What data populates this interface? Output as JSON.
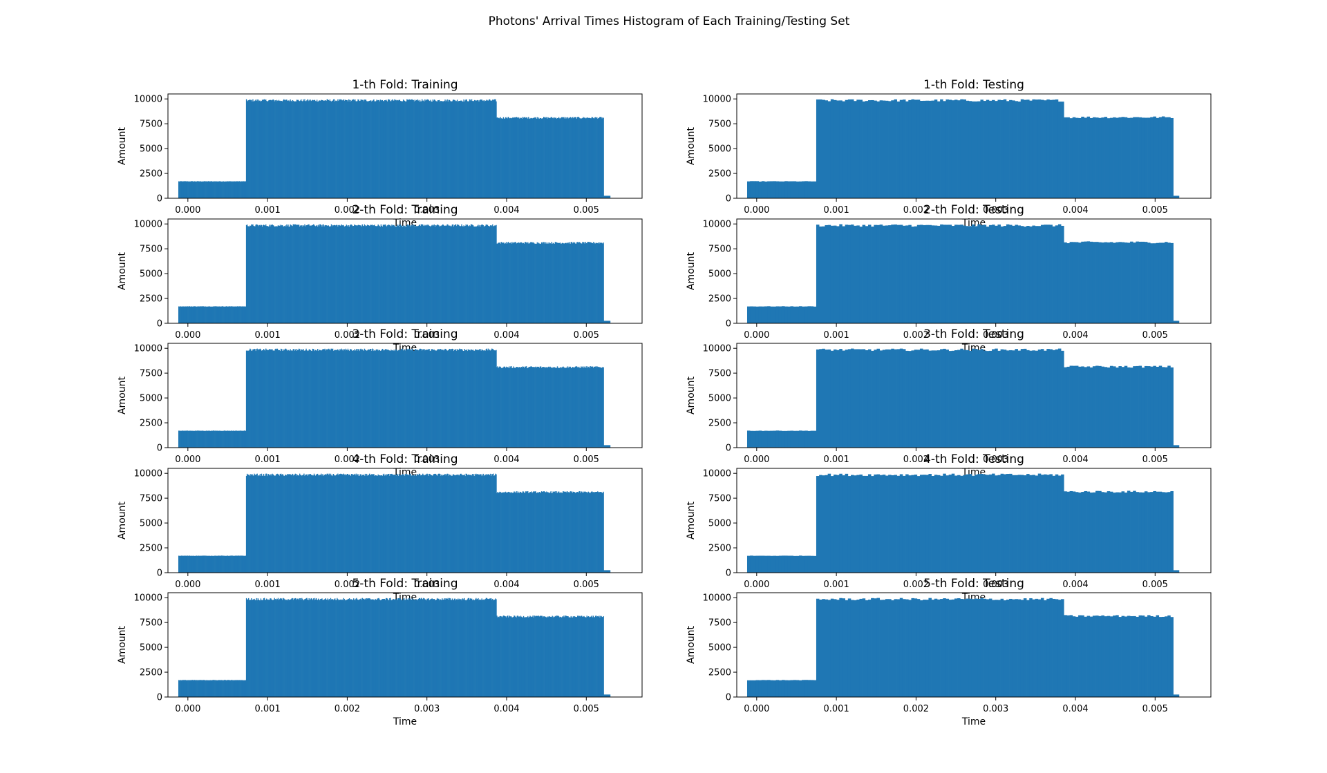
{
  "figure_title": "Photons' Arrival Times Histogram of Each Training/Testing Set",
  "colors": {
    "bars": "#1f77b4",
    "background": "#ffffff",
    "axes": "#000000"
  },
  "chart_data": [
    {
      "type": "bar",
      "title": "1-th Fold: Training",
      "xlabel": "Time",
      "ylabel": "Amount",
      "xlim": [
        -0.00025,
        0.0057
      ],
      "ylim": [
        0,
        10500
      ],
      "xticks": [
        "0.000",
        "0.001",
        "0.002",
        "0.003",
        "0.004",
        "0.005"
      ],
      "yticks": [
        "0",
        "2500",
        "5000",
        "7500",
        "10000"
      ],
      "bins": 600,
      "levels": [
        {
          "from": -0.00012,
          "to": 0.00073,
          "value": 1700
        },
        {
          "from": 0.00073,
          "to": 0.00387,
          "value": 9850
        },
        {
          "from": 0.00387,
          "to": 0.00522,
          "value": 8100
        },
        {
          "from": 0.00522,
          "to": 0.0053,
          "value": 250
        }
      ],
      "grid": false
    },
    {
      "type": "bar",
      "title": "1-th Fold: Testing",
      "xlabel": "Time",
      "ylabel": "Amount",
      "xlim": [
        -0.00025,
        0.0057
      ],
      "ylim": [
        0,
        10500
      ],
      "xticks": [
        "0.000",
        "0.001",
        "0.002",
        "0.003",
        "0.004",
        "0.005"
      ],
      "yticks": [
        "0",
        "2500",
        "5000",
        "7500",
        "10000"
      ],
      "bins": 150,
      "levels": [
        {
          "from": -0.00012,
          "to": 0.00073,
          "value": 1700
        },
        {
          "from": 0.00073,
          "to": 0.00387,
          "value": 9850
        },
        {
          "from": 0.00387,
          "to": 0.00522,
          "value": 8150
        },
        {
          "from": 0.00522,
          "to": 0.0053,
          "value": 250
        }
      ],
      "grid": false
    },
    {
      "type": "bar",
      "title": "2-th Fold: Training",
      "xlabel": "Time",
      "ylabel": "Amount",
      "xlim": [
        -0.00025,
        0.0057
      ],
      "ylim": [
        0,
        10500
      ],
      "xticks": [
        "0.000",
        "0.001",
        "0.002",
        "0.003",
        "0.004",
        "0.005"
      ],
      "yticks": [
        "0",
        "2500",
        "5000",
        "7500",
        "10000"
      ],
      "bins": 600,
      "levels": [
        {
          "from": -0.00012,
          "to": 0.00073,
          "value": 1700
        },
        {
          "from": 0.00073,
          "to": 0.00387,
          "value": 9850
        },
        {
          "from": 0.00387,
          "to": 0.00522,
          "value": 8100
        },
        {
          "from": 0.00522,
          "to": 0.0053,
          "value": 250
        }
      ],
      "grid": false
    },
    {
      "type": "bar",
      "title": "2-th Fold: Testing",
      "xlabel": "Time",
      "ylabel": "Amount",
      "xlim": [
        -0.00025,
        0.0057
      ],
      "ylim": [
        0,
        10500
      ],
      "xticks": [
        "0.000",
        "0.001",
        "0.002",
        "0.003",
        "0.004",
        "0.005"
      ],
      "yticks": [
        "0",
        "2500",
        "5000",
        "7500",
        "10000"
      ],
      "bins": 150,
      "levels": [
        {
          "from": -0.00012,
          "to": 0.00073,
          "value": 1700
        },
        {
          "from": 0.00073,
          "to": 0.00387,
          "value": 9850
        },
        {
          "from": 0.00387,
          "to": 0.00522,
          "value": 8150
        },
        {
          "from": 0.00522,
          "to": 0.0053,
          "value": 250
        }
      ],
      "grid": false
    },
    {
      "type": "bar",
      "title": "3-th Fold: Training",
      "xlabel": "Time",
      "ylabel": "Amount",
      "xlim": [
        -0.00025,
        0.0057
      ],
      "ylim": [
        0,
        10500
      ],
      "xticks": [
        "0.000",
        "0.001",
        "0.002",
        "0.003",
        "0.004",
        "0.005"
      ],
      "yticks": [
        "0",
        "2500",
        "5000",
        "7500",
        "10000"
      ],
      "bins": 600,
      "levels": [
        {
          "from": -0.00012,
          "to": 0.00073,
          "value": 1700
        },
        {
          "from": 0.00073,
          "to": 0.00387,
          "value": 9850
        },
        {
          "from": 0.00387,
          "to": 0.00522,
          "value": 8100
        },
        {
          "from": 0.00522,
          "to": 0.0053,
          "value": 250
        }
      ],
      "grid": false
    },
    {
      "type": "bar",
      "title": "3-th Fold: Testing",
      "xlabel": "Time",
      "ylabel": "Amount",
      "xlim": [
        -0.00025,
        0.0057
      ],
      "ylim": [
        0,
        10500
      ],
      "xticks": [
        "0.000",
        "0.001",
        "0.002",
        "0.003",
        "0.004",
        "0.005"
      ],
      "yticks": [
        "0",
        "2500",
        "5000",
        "7500",
        "10000"
      ],
      "bins": 150,
      "levels": [
        {
          "from": -0.00012,
          "to": 0.00073,
          "value": 1700
        },
        {
          "from": 0.00073,
          "to": 0.00387,
          "value": 9850
        },
        {
          "from": 0.00387,
          "to": 0.00522,
          "value": 8150
        },
        {
          "from": 0.00522,
          "to": 0.0053,
          "value": 250
        }
      ],
      "grid": false
    },
    {
      "type": "bar",
      "title": "4-th Fold: Training",
      "xlabel": "Time",
      "ylabel": "Amount",
      "xlim": [
        -0.00025,
        0.0057
      ],
      "ylim": [
        0,
        10500
      ],
      "xticks": [
        "0.000",
        "0.001",
        "0.002",
        "0.003",
        "0.004",
        "0.005"
      ],
      "yticks": [
        "0",
        "2500",
        "5000",
        "7500",
        "10000"
      ],
      "bins": 600,
      "levels": [
        {
          "from": -0.00012,
          "to": 0.00073,
          "value": 1700
        },
        {
          "from": 0.00073,
          "to": 0.00387,
          "value": 9850
        },
        {
          "from": 0.00387,
          "to": 0.00522,
          "value": 8100
        },
        {
          "from": 0.00522,
          "to": 0.0053,
          "value": 250
        }
      ],
      "grid": false
    },
    {
      "type": "bar",
      "title": "4-th Fold: Testing",
      "xlabel": "Time",
      "ylabel": "Amount",
      "xlim": [
        -0.00025,
        0.0057
      ],
      "ylim": [
        0,
        10500
      ],
      "xticks": [
        "0.000",
        "0.001",
        "0.002",
        "0.003",
        "0.004",
        "0.005"
      ],
      "yticks": [
        "0",
        "2500",
        "5000",
        "7500",
        "10000"
      ],
      "bins": 150,
      "levels": [
        {
          "from": -0.00012,
          "to": 0.00073,
          "value": 1700
        },
        {
          "from": 0.00073,
          "to": 0.00387,
          "value": 9850
        },
        {
          "from": 0.00387,
          "to": 0.00522,
          "value": 8150
        },
        {
          "from": 0.00522,
          "to": 0.0053,
          "value": 250
        }
      ],
      "grid": false
    },
    {
      "type": "bar",
      "title": "5-th Fold: Training",
      "xlabel": "Time",
      "ylabel": "Amount",
      "xlim": [
        -0.00025,
        0.0057
      ],
      "ylim": [
        0,
        10500
      ],
      "xticks": [
        "0.000",
        "0.001",
        "0.002",
        "0.003",
        "0.004",
        "0.005"
      ],
      "yticks": [
        "0",
        "2500",
        "5000",
        "7500",
        "10000"
      ],
      "bins": 600,
      "levels": [
        {
          "from": -0.00012,
          "to": 0.00073,
          "value": 1700
        },
        {
          "from": 0.00073,
          "to": 0.00387,
          "value": 9850
        },
        {
          "from": 0.00387,
          "to": 0.00522,
          "value": 8100
        },
        {
          "from": 0.00522,
          "to": 0.0053,
          "value": 250
        }
      ],
      "grid": false
    },
    {
      "type": "bar",
      "title": "5-th Fold: Testing",
      "xlabel": "Time",
      "ylabel": "Amount",
      "xlim": [
        -0.00025,
        0.0057
      ],
      "ylim": [
        0,
        10500
      ],
      "xticks": [
        "0.000",
        "0.001",
        "0.002",
        "0.003",
        "0.004",
        "0.005"
      ],
      "yticks": [
        "0",
        "2500",
        "5000",
        "7500",
        "10000"
      ],
      "bins": 150,
      "levels": [
        {
          "from": -0.00012,
          "to": 0.00073,
          "value": 1700
        },
        {
          "from": 0.00073,
          "to": 0.00387,
          "value": 9850
        },
        {
          "from": 0.00387,
          "to": 0.00522,
          "value": 8150
        },
        {
          "from": 0.00522,
          "to": 0.0053,
          "value": 250
        }
      ],
      "grid": false
    }
  ]
}
